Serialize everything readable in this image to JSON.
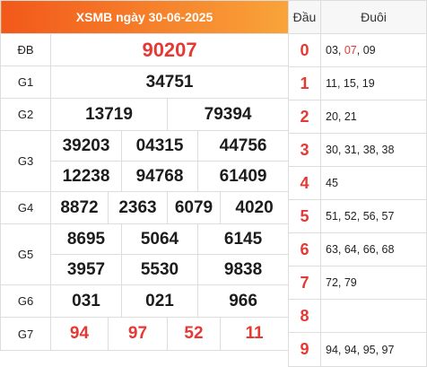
{
  "header": {
    "title": "XSMB ngày 30-06-2025"
  },
  "prizes": {
    "db": {
      "label": "ĐB",
      "numbers": [
        "90207"
      ]
    },
    "g1": {
      "label": "G1",
      "numbers": [
        "34751"
      ]
    },
    "g2": {
      "label": "G2",
      "numbers": [
        "13719",
        "79394"
      ]
    },
    "g3": {
      "label": "G3",
      "numbers": [
        "39203",
        "04315",
        "44756",
        "12238",
        "94768",
        "61409"
      ]
    },
    "g4": {
      "label": "G4",
      "numbers": [
        "8872",
        "2363",
        "6079",
        "4020"
      ]
    },
    "g5": {
      "label": "G5",
      "numbers": [
        "8695",
        "5064",
        "6145",
        "3957",
        "5530",
        "9838"
      ]
    },
    "g6": {
      "label": "G6",
      "numbers": [
        "031",
        "021",
        "966"
      ]
    },
    "g7": {
      "label": "G7",
      "numbers": [
        "94",
        "97",
        "52",
        "11"
      ]
    }
  },
  "loto": {
    "head_label": "Đầu",
    "tail_label": "Đuôi",
    "rows": [
      {
        "head": "0",
        "tails": [
          "03",
          ", ",
          "07",
          ", 09"
        ]
      },
      {
        "head": "1",
        "tails": [
          "11, 15, 19"
        ]
      },
      {
        "head": "2",
        "tails": [
          "20, 21"
        ]
      },
      {
        "head": "3",
        "tails": [
          "30, 31, 38, 38"
        ]
      },
      {
        "head": "4",
        "tails": [
          "45"
        ]
      },
      {
        "head": "5",
        "tails": [
          "51, 52, 56, 57"
        ]
      },
      {
        "head": "6",
        "tails": [
          "63, 64, 66, 68"
        ]
      },
      {
        "head": "7",
        "tails": [
          "72, 79"
        ]
      },
      {
        "head": "8",
        "tails": [
          ""
        ]
      },
      {
        "head": "9",
        "tails": [
          "94, 94, 95, 97"
        ]
      }
    ]
  },
  "colors": {
    "accent": "#e53935",
    "header_start": "#f2581a",
    "header_end": "#f9a43a"
  }
}
